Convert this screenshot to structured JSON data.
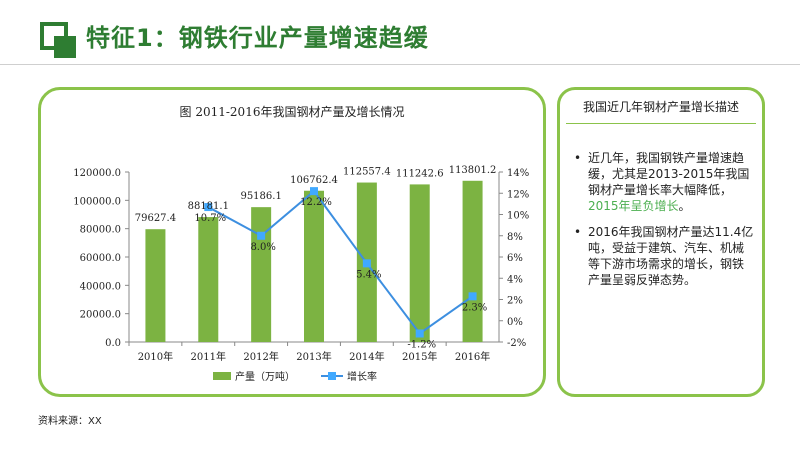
{
  "header": {
    "title": "特征1：钢铁行业产量增速趋缓"
  },
  "sidebar": {
    "title": "我国近几年钢材产量增长描述",
    "bullets": [
      {
        "text": "近几年，我国钢铁产量增速趋缓，尤其是2013-2015年我国钢材产量增长率大幅降低，",
        "highlight": "2015年呈负增长",
        "tail": "。"
      },
      {
        "text": "2016年我国钢材产量达11.4亿吨，受益于建筑、汽车、机械等下游市场需求的增长，钢铁产量呈弱反弹态势。",
        "highlight": "",
        "tail": ""
      }
    ]
  },
  "footer": {
    "source": "资料来源：XX"
  },
  "colors": {
    "accent": "#2e7d32",
    "border": "#8bc34a",
    "bar": "#7cb342",
    "line": "#3d8fe0",
    "marker": "#40a9ff"
  },
  "chart_data": {
    "type": "bar",
    "title": "图  2011-2016年我国钢材产量及增长情况",
    "categories": [
      "2010年",
      "2011年",
      "2012年",
      "2013年",
      "2014年",
      "2015年",
      "2016年"
    ],
    "series": [
      {
        "name": "产量（万吨）",
        "type": "bar",
        "axis": "left",
        "values": [
          79627.4,
          88181.1,
          95186.1,
          106762.4,
          112557.4,
          111242.6,
          113801.2
        ],
        "labels": [
          "79627.4",
          "88181.1",
          "95186.1",
          "106762.4",
          "112557.4",
          "111242.6",
          "113801.2"
        ]
      },
      {
        "name": "增长率",
        "type": "line",
        "axis": "right",
        "values": [
          null,
          10.7,
          8.0,
          12.2,
          5.4,
          -1.2,
          2.3
        ],
        "labels": [
          "",
          "10.7%",
          "8.0%",
          "12.2%",
          "5.4%",
          "-1.2%",
          "2.3%"
        ]
      }
    ],
    "ylim": [
      0,
      120000
    ],
    "yticks": [
      "0.0",
      "20000.0",
      "40000.0",
      "60000.0",
      "80000.0",
      "100000.0",
      "120000.0"
    ],
    "y2lim": [
      -2,
      14
    ],
    "y2ticks": [
      "-2%",
      "0%",
      "2%",
      "4%",
      "6%",
      "8%",
      "10%",
      "12%",
      "14%"
    ],
    "legend": "bottom",
    "grid": false
  }
}
